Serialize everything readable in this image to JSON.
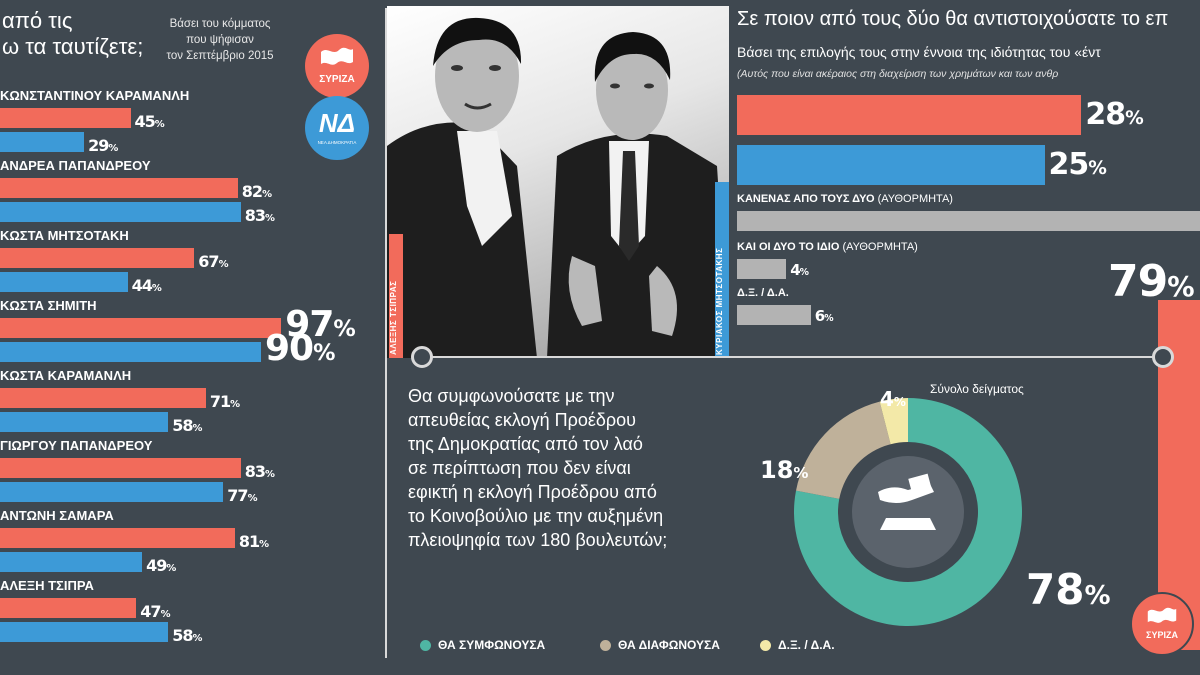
{
  "colors": {
    "bg": "#3f4850",
    "syriza_red": "#f26b5b",
    "nd_blue": "#3d9ad7",
    "gray": "#b3b3b3",
    "teal": "#4fb6a3",
    "beige": "#bfb19a",
    "cream": "#f3e9a8",
    "dark_circle": "#5b636c"
  },
  "left": {
    "title_line1": "από τις",
    "title_line2": "ω τα ταυτίζετε;",
    "subtitle_line1": "Βάσει του κόμματος",
    "subtitle_line2": "που ψήφισαν",
    "subtitle_line3": "τον Σεπτέμβριο 2015",
    "logo_syriza": "ΣΥΡΙΖΑ",
    "logo_nd": "ΝΔ",
    "logo_nd_sub": "ΝΕΑ ΔΗΜΟΚΡΑΤΙΑ"
  },
  "chart_data": [
    {
      "type": "bar",
      "orientation": "horizontal",
      "categories": [
        "ΚΩΝΣΤΑΝΤΙΝΟΥ ΚΑΡΑΜΑΝΛΗ",
        "ΑΝΔΡΕΑ ΠΑΠΑΝΔΡΕΟΥ",
        "ΚΩΣΤΑ ΜΗΤΣΟΤΑΚΗ",
        "ΚΩΣΤΑ ΣΗΜΙΤΗ",
        "ΚΩΣΤΑ ΚΑΡΑΜΑΝΛΗ",
        "ΓΙΩΡΓΟΥ ΠΑΠΑΝΔΡΕΟΥ",
        "ΑΝΤΩΝΗ ΣΑΜΑΡΑ",
        "ΑΛΕΞΗ ΤΣΙΠΡΑ"
      ],
      "series": [
        {
          "name": "ΣΥΡΙΖΑ",
          "color": "#f26b5b",
          "values": [
            45,
            82,
            67,
            97,
            71,
            83,
            81,
            47
          ]
        },
        {
          "name": "ΝΔ",
          "color": "#3d9ad7",
          "values": [
            29,
            83,
            44,
            90,
            58,
            77,
            49,
            58
          ]
        }
      ],
      "unit": "%"
    },
    {
      "type": "bar",
      "orientation": "horizontal",
      "title": "Σε ποιον από τους δύο θα αντιστοιχούσατε το επ",
      "subtitle": "Βάσει της επιλογής τους στην έννοια της ιδιότητας του «έντ",
      "note": "(Αυτός που είναι ακέραιος στη διαχείριση των χρημάτων και των ανθρ",
      "categories": [
        "ΑΛΕΞΗΣ ΤΣΙΠΡΑΣ",
        "ΚΥΡΙΑΚΟΣ ΜΗΤΣΟΤΑΚΗΣ",
        "ΚΑΝΕΝΑΣ ΑΠΟ ΤΟΥΣ ΔΥΟ",
        "ΚΑΙ ΟΙ ΔΥΟ ΤΟ ΙΔΙΟ",
        "Δ.Ξ. / Δ.Α."
      ],
      "values": [
        28,
        25,
        null,
        4,
        6
      ],
      "qualifiers": [
        "",
        "",
        "(ΑΥΘΟΡΜΗΤΑ)",
        "(ΑΥΘΟΡΜΗΤΑ)",
        ""
      ],
      "unit": "%",
      "partial_bar_value": 79,
      "partial_bar_logo": "ΣΥΡΙΖΑ"
    },
    {
      "type": "pie",
      "variant": "donut",
      "title": "Σύνολο δείγματος",
      "categories": [
        "ΘΑ ΣΥΜΦΩΝΟΥΣΑ",
        "ΘΑ ΔΙΑΦΩΝΟΥΣΑ",
        "Δ.Ξ. / Δ.Α."
      ],
      "values": [
        78,
        18,
        4
      ],
      "colors": [
        "#4fb6a3",
        "#bfb19a",
        "#f3e9a8"
      ],
      "unit": "%",
      "legend": "bottom"
    }
  ],
  "photo_captions": {
    "left": "ΑΛΕΞΗΣ ΤΣΙΠΡΑΣ",
    "right": "ΚΥΡΙΑΚΟΣ ΜΗΤΣΟΤΑΚΗΣ"
  },
  "question": {
    "lines": [
      "Θα συμφωνούσατε με την",
      "απευθείας εκλογή Προέδρου",
      "της Δημοκρατίας από τον λαό",
      "σε περίπτωση που δεν είναι",
      "εφικτή η εκλογή Προέδρου από",
      "το Κοινοβούλιο με την αυξημένη",
      "πλειοψηφία των 180 βουλευτών;"
    ]
  }
}
